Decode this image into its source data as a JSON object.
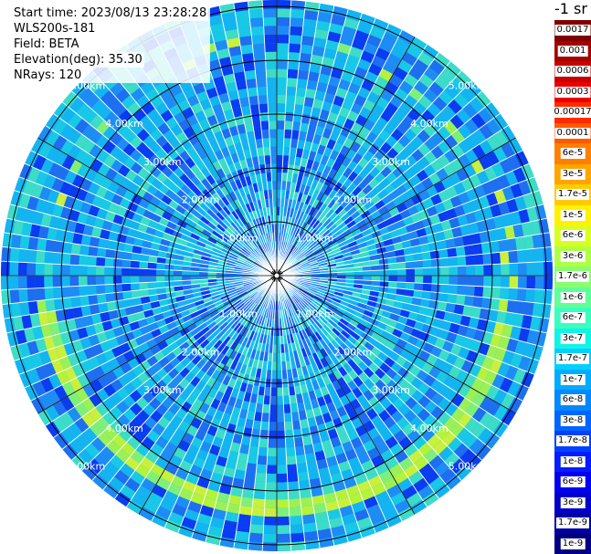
{
  "header": {
    "start_time": "Start time: 2023/08/13 23:28:28",
    "instrument": "WLS200s-181",
    "field": "Field: BETA",
    "elevation": "Elevation(deg): 35.30",
    "nrays": "NRays: 120"
  },
  "unit_title": "-1 sr",
  "range_rings": [
    {
      "label": "1.00km",
      "km": 1
    },
    {
      "label": "2.00km",
      "km": 2
    },
    {
      "label": "3.00km",
      "km": 3
    },
    {
      "label": "4.00km",
      "km": 4
    },
    {
      "label": "5.00km",
      "km": 5
    }
  ],
  "colorbar": [
    {
      "label": "0.0017",
      "color": "#7f0000"
    },
    {
      "label": "0.001",
      "color": "#a50000"
    },
    {
      "label": "0.0006",
      "color": "#c80000"
    },
    {
      "label": "0.0003",
      "color": "#ec0000"
    },
    {
      "label": "0.00017",
      "color": "#ff2a00"
    },
    {
      "label": "0.0001",
      "color": "#ff5a00"
    },
    {
      "label": "6e-5",
      "color": "#ff8000"
    },
    {
      "label": "3e-5",
      "color": "#ffa500"
    },
    {
      "label": "1.7e-5",
      "color": "#ffcc00"
    },
    {
      "label": "1e-5",
      "color": "#fff200"
    },
    {
      "label": "6e-6",
      "color": "#d8ff20"
    },
    {
      "label": "3e-6",
      "color": "#b0ff47"
    },
    {
      "label": "1.7e-6",
      "color": "#87ff70"
    },
    {
      "label": "1e-6",
      "color": "#60ff97"
    },
    {
      "label": "6e-7",
      "color": "#38ffbf"
    },
    {
      "label": "3e-7",
      "color": "#10f4e6"
    },
    {
      "label": "1.7e-7",
      "color": "#00d0ff"
    },
    {
      "label": "1e-7",
      "color": "#00acff"
    },
    {
      "label": "6e-8",
      "color": "#0088ff"
    },
    {
      "label": "3e-8",
      "color": "#0064ff"
    },
    {
      "label": "1.7e-8",
      "color": "#0040ff"
    },
    {
      "label": "1e-8",
      "color": "#001cff"
    },
    {
      "label": "6e-9",
      "color": "#0000f0"
    },
    {
      "label": "3e-9",
      "color": "#0000c8"
    },
    {
      "label": "1.7e-9",
      "color": "#0000a0"
    },
    {
      "label": "1e-9",
      "color": "#000080"
    }
  ],
  "colors": {
    "background": "#ffffff",
    "ring_line": "#000000",
    "ray_gap": "#ffffff",
    "dominant_cyan": "#14b4f0",
    "dominant_blue": "#1e6ef0",
    "aerosol_green": "#9bf056"
  }
}
